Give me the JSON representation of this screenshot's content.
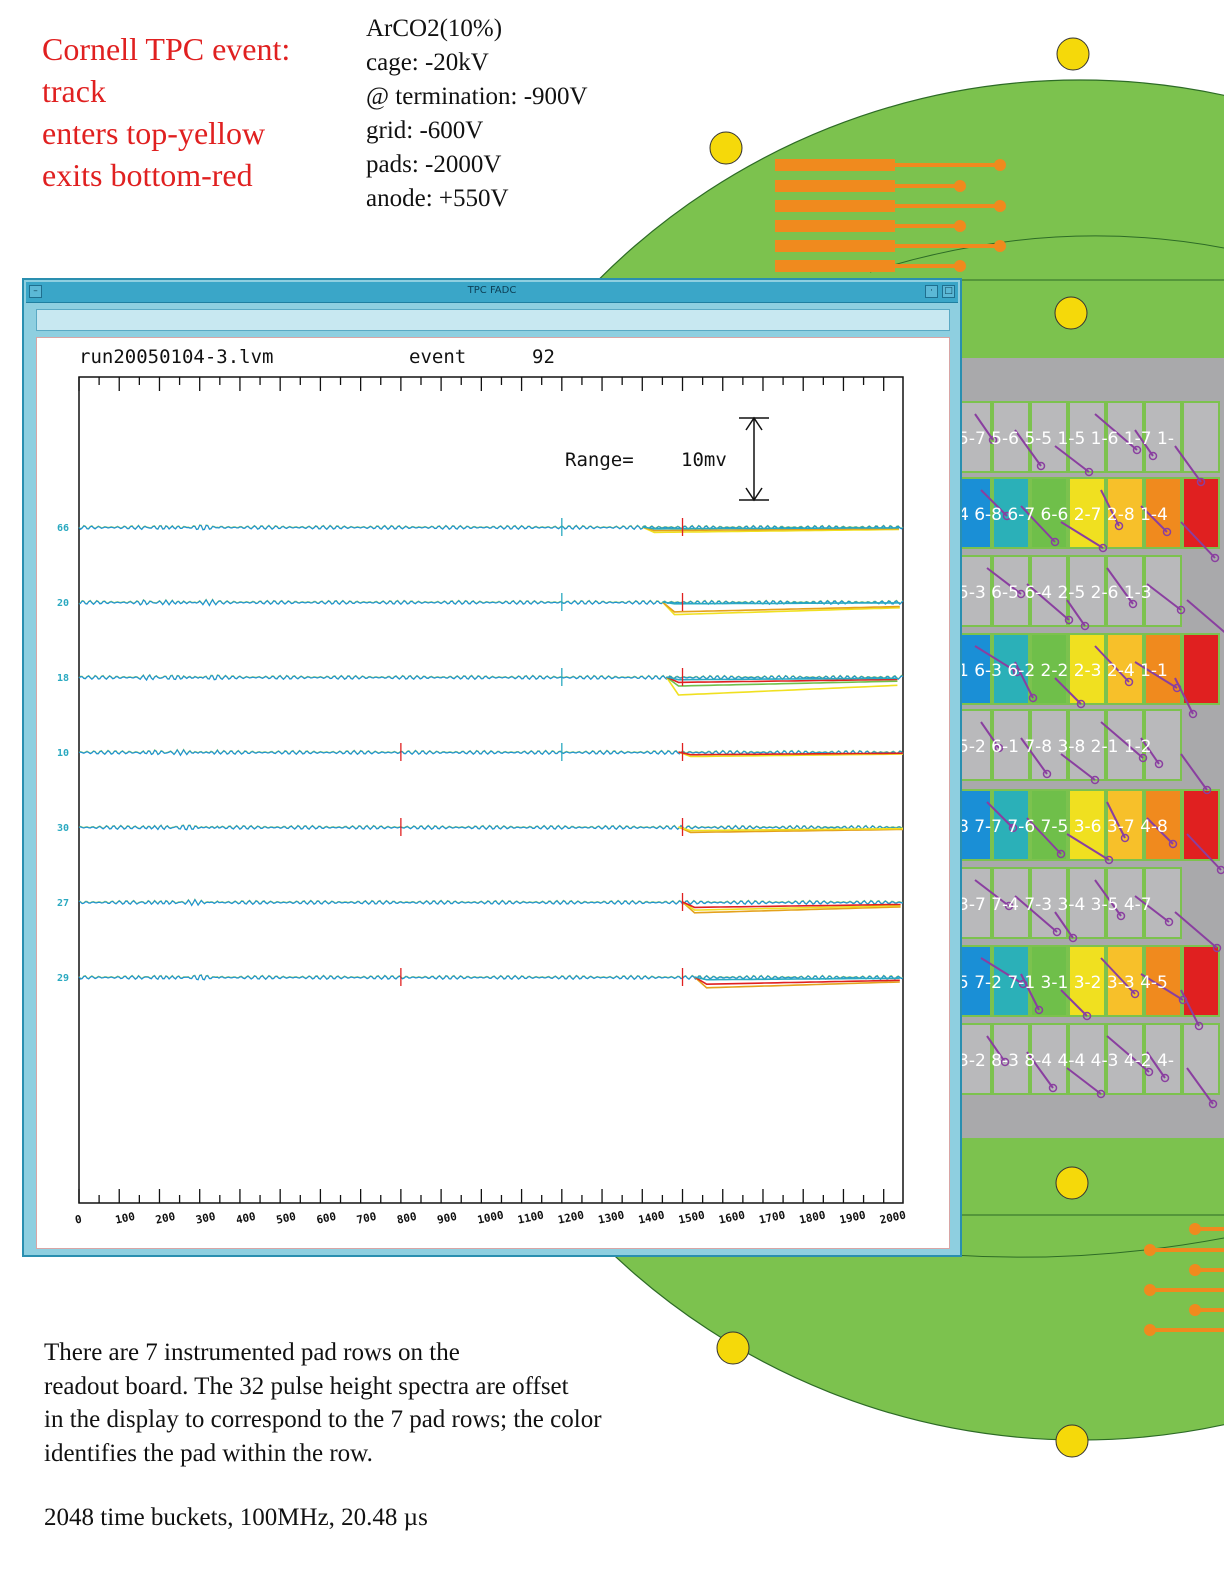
{
  "title_lines": [
    "Cornell TPC event:",
    "track",
    "enters top-yellow",
    "exits bottom-red"
  ],
  "params": [
    "ArCO2(10%)",
    "cage: -20kV",
    "@ termination: -900V",
    "grid: -600V",
    "pads: -2000V",
    "anode: +550V"
  ],
  "window": {
    "title": "TPC FADC",
    "run_label": "run20050104-3.lvm",
    "event_label": "event",
    "event_number": "92",
    "range_label": "Range=",
    "range_value": "10mv"
  },
  "chart_data": {
    "type": "line",
    "x_ticks": [
      "0",
      "100",
      "200",
      "300",
      "400",
      "500",
      "600",
      "700",
      "800",
      "900",
      "1000",
      "1100",
      "1200",
      "1300",
      "1400",
      "1500",
      "1600",
      "1700",
      "1800",
      "1900",
      "2000"
    ],
    "xlim": [
      0,
      2048
    ],
    "grid": false,
    "trace_rows": [
      {
        "channel_label": "66",
        "marks": [
          1200,
          1500
        ],
        "drops": [
          {
            "color": "#f0e020",
            "start": 1400,
            "depth": 0.6
          },
          {
            "color": "#e4a11b",
            "start": 1400,
            "depth": 0.4
          },
          {
            "color": "#2aa9c0",
            "start": 1400,
            "depth": 0.2
          }
        ]
      },
      {
        "channel_label": "20",
        "marks": [
          1200,
          1500
        ],
        "drops": [
          {
            "color": "#f0e020",
            "start": 1450,
            "depth": 1.4
          },
          {
            "color": "#e4a11b",
            "start": 1450,
            "depth": 1.1
          },
          {
            "color": "#2aa9c0",
            "start": 1450,
            "depth": 0.2
          }
        ]
      },
      {
        "channel_label": "18",
        "marks": [
          1200,
          1500
        ],
        "drops": [
          {
            "color": "#f0e020",
            "start": 1460,
            "depth": 2.0
          },
          {
            "color": "#6fbf4a",
            "start": 1460,
            "depth": 1.0
          },
          {
            "color": "#e02020",
            "start": 1460,
            "depth": 0.6
          },
          {
            "color": "#2aa9c0",
            "start": 1460,
            "depth": 0.3
          }
        ]
      },
      {
        "channel_label": "10",
        "marks": [
          800,
          1200,
          1500
        ],
        "drops": [
          {
            "color": "#f0e020",
            "start": 1490,
            "depth": 0.5
          },
          {
            "color": "#e02020",
            "start": 1490,
            "depth": 0.3
          }
        ]
      },
      {
        "channel_label": "30",
        "marks": [
          800,
          1500
        ],
        "drops": [
          {
            "color": "#e4a11b",
            "start": 1490,
            "depth": 0.6
          },
          {
            "color": "#f0e020",
            "start": 1490,
            "depth": 0.4
          }
        ]
      },
      {
        "channel_label": "27",
        "marks": [
          1500
        ],
        "drops": [
          {
            "color": "#e4a11b",
            "start": 1500,
            "depth": 1.2
          },
          {
            "color": "#f0e020",
            "start": 1500,
            "depth": 0.9
          },
          {
            "color": "#e02020",
            "start": 1500,
            "depth": 0.6
          }
        ]
      },
      {
        "channel_label": "29",
        "marks": [
          800,
          1500
        ],
        "drops": [
          {
            "color": "#e4a11b",
            "start": 1530,
            "depth": 1.2
          },
          {
            "color": "#e02020",
            "start": 1530,
            "depth": 0.8
          },
          {
            "color": "#2aa9c0",
            "start": 1530,
            "depth": 0.3
          }
        ]
      }
    ]
  },
  "pad_labels": [
    [
      "5-7",
      "5-6",
      "5-5",
      "1-5",
      "1-6",
      "1-7",
      "1-"
    ],
    [
      "4",
      "6-8",
      "6-7",
      "6-6",
      "2-7",
      "2-8",
      "1-4"
    ],
    [
      "5-3",
      "6-5",
      "6-4",
      "2-5",
      "2-6",
      "1-3"
    ],
    [
      "1",
      "6-3",
      "6-2",
      "2-2",
      "2-3",
      "2-4",
      "1-1"
    ],
    [
      "5-2",
      "6-1",
      "7-8",
      "3-8",
      "2-1",
      "1-2"
    ],
    [
      "8",
      "7-7",
      "7-6",
      "7-5",
      "3-6",
      "3-7",
      "4-8"
    ],
    [
      "3-7",
      "7-4",
      "7-3",
      "3-4",
      "3-5",
      "4-7"
    ],
    [
      "5",
      "7-2",
      "7-1",
      "3-1",
      "3-2",
      "3-3",
      "4-5"
    ],
    [
      "3-2",
      "8-3",
      "8-4",
      "4-4",
      "4-3",
      "4-2",
      "4-"
    ]
  ],
  "caption_lines": [
    "There are 7 instrumented pad rows on the",
    "readout board. The 32 pulse height spectra are offset",
    "in the display to correspond to the 7 pad rows; the color",
    "identifies the pad within the row."
  ],
  "footer": "2048 time buckets, 100MHz, 20.48 µs",
  "colors": {
    "board": "#7cc24e",
    "pad_grey": "#a9a9ab",
    "leads": "#f08a1e",
    "traces": "#8a3fa0",
    "hole": "#f5d90a",
    "title": "#e02020"
  }
}
